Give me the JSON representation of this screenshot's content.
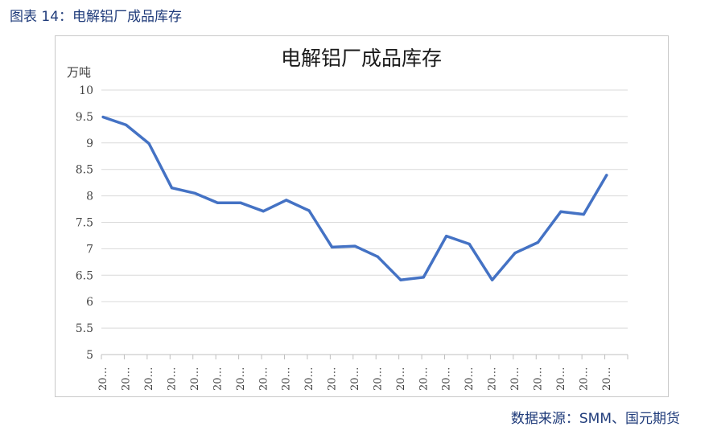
{
  "figure_caption": "图表 14：电解铝厂成品库存",
  "source_note": "数据来源：SMM、国元期货",
  "chart_data": {
    "type": "line",
    "title": "电解铝厂成品库存",
    "ylabel": "万吨",
    "xlabel": "",
    "ylim": [
      5,
      10
    ],
    "y_ticks": [
      5,
      5.5,
      6,
      6.5,
      7,
      7.5,
      8,
      8.5,
      9,
      9.5,
      10
    ],
    "y_tick_labels": [
      "5",
      "5.5",
      "6",
      "6.5",
      "7",
      "7.5",
      "8",
      "8.5",
      "9",
      "9.5",
      "10"
    ],
    "categories": [
      "20…",
      "20…",
      "20…",
      "20…",
      "20…",
      "20…",
      "20…",
      "20…",
      "20…",
      "20…",
      "20…",
      "20…",
      "20…",
      "20…",
      "20…",
      "20…",
      "20…",
      "20…",
      "20…",
      "20…",
      "20…",
      "20…",
      "20…"
    ],
    "grid": true,
    "legend": "none",
    "series": [
      {
        "color": "#4472c4",
        "values": [
          9.49,
          9.34,
          8.99,
          8.15,
          8.05,
          7.87,
          7.87,
          7.71,
          7.92,
          7.72,
          7.03,
          7.05,
          6.85,
          6.41,
          6.46,
          7.24,
          7.09,
          6.41,
          6.92,
          7.12,
          7.7,
          7.65,
          8.39
        ]
      }
    ]
  }
}
